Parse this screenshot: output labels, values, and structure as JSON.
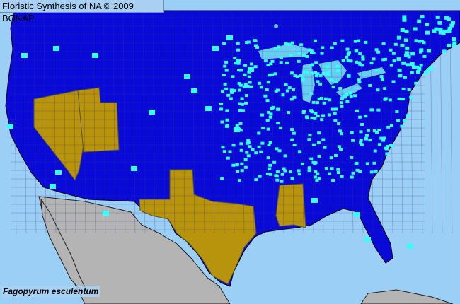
{
  "header": {
    "title": "Floristic Synthesis of NA © 2009 BONAP"
  },
  "species": {
    "name": "Fagopyrum esculentum"
  },
  "legend_colors": {
    "water": "#9ccff5",
    "region": "#0a0ad8",
    "county_border": "#333388",
    "present_county": "#33ffff",
    "present_state": "#b8930c",
    "outside": "#b4b4b4",
    "lakes": "#66ccf0"
  },
  "present_states": [
    "Nevada",
    "Utah",
    "Texas",
    "Mississippi"
  ]
}
